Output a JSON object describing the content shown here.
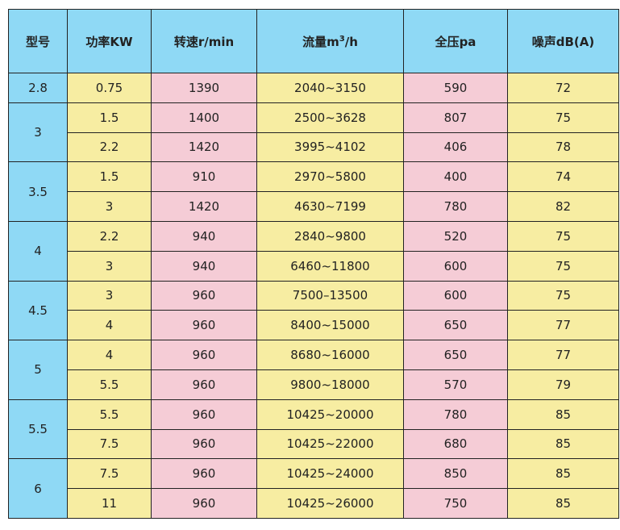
{
  "table": {
    "headers": {
      "model": "型号",
      "power": "功率KW",
      "speed": "转速r/min",
      "flow_prefix": "流量m",
      "flow_sup": "3",
      "flow_suffix": "/h",
      "pressure": "全压pa",
      "noise": "噪声dB(A)"
    },
    "groups": [
      {
        "model": "2.8",
        "rows": [
          {
            "power": "0.75",
            "speed": "1390",
            "flow": "2040~3150",
            "pressure": "590",
            "noise": "72"
          }
        ]
      },
      {
        "model": "3",
        "rows": [
          {
            "power": "1.5",
            "speed": "1400",
            "flow": "2500~3628",
            "pressure": "807",
            "noise": "75"
          },
          {
            "power": "2.2",
            "speed": "1420",
            "flow": "3995~4102",
            "pressure": "406",
            "noise": "78"
          }
        ]
      },
      {
        "model": "3.5",
        "rows": [
          {
            "power": "1.5",
            "speed": "910",
            "flow": "2970~5800",
            "pressure": "400",
            "noise": "74"
          },
          {
            "power": "3",
            "speed": "1420",
            "flow": "4630~7199",
            "pressure": "780",
            "noise": "82"
          }
        ]
      },
      {
        "model": "4",
        "rows": [
          {
            "power": "2.2",
            "speed": "940",
            "flow": "2840~9800",
            "pressure": "520",
            "noise": "75"
          },
          {
            "power": "3",
            "speed": "940",
            "flow": "6460~11800",
            "pressure": "600",
            "noise": "75"
          }
        ]
      },
      {
        "model": "4.5",
        "rows": [
          {
            "power": "3",
            "speed": "960",
            "flow": "7500–13500",
            "pressure": "600",
            "noise": "75"
          },
          {
            "power": "4",
            "speed": "960",
            "flow": "8400~15000",
            "pressure": "650",
            "noise": "77"
          }
        ]
      },
      {
        "model": "5",
        "rows": [
          {
            "power": "4",
            "speed": "960",
            "flow": "8680~16000",
            "pressure": "650",
            "noise": "77"
          },
          {
            "power": "5.5",
            "speed": "960",
            "flow": "9800~18000",
            "pressure": "570",
            "noise": "79"
          }
        ]
      },
      {
        "model": "5.5",
        "rows": [
          {
            "power": "5.5",
            "speed": "960",
            "flow": "10425~20000",
            "pressure": "780",
            "noise": "85"
          },
          {
            "power": "7.5",
            "speed": "960",
            "flow": "10425~22000",
            "pressure": "680",
            "noise": "85"
          }
        ]
      },
      {
        "model": "6",
        "rows": [
          {
            "power": "7.5",
            "speed": "960",
            "flow": "10425~24000",
            "pressure": "850",
            "noise": "85"
          },
          {
            "power": "11",
            "speed": "960",
            "flow": "10425~26000",
            "pressure": "750",
            "noise": "85"
          }
        ]
      }
    ]
  }
}
